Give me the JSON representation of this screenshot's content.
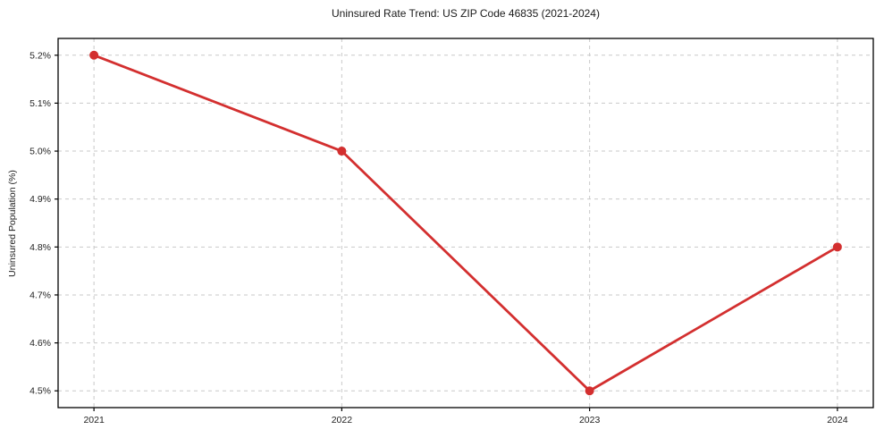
{
  "chart_data": {
    "type": "line",
    "title": "Uninsured Rate Trend: US ZIP Code 46835 (2021-2024)",
    "xlabel": "",
    "ylabel": "Uninsured Population (%)",
    "categories": [
      "2021",
      "2022",
      "2023",
      "2024"
    ],
    "values": [
      5.2,
      5.0,
      4.5,
      4.8
    ],
    "ytick_values": [
      4.5,
      4.6,
      4.7,
      4.8,
      4.9,
      5.0,
      5.1,
      5.2
    ],
    "ytick_labels": [
      "4.5%",
      "4.6%",
      "4.7%",
      "4.8%",
      "4.9%",
      "5.0%",
      "5.1%",
      "5.2%"
    ],
    "ylim": [
      4.465,
      5.235
    ],
    "grid": true,
    "legend_position": "none",
    "line_color": "#d32f2f",
    "marker_color": "#d32f2f",
    "grid_color": "#c9c9c9",
    "spine_color": "#000000",
    "tick_text_color": "#222222"
  }
}
